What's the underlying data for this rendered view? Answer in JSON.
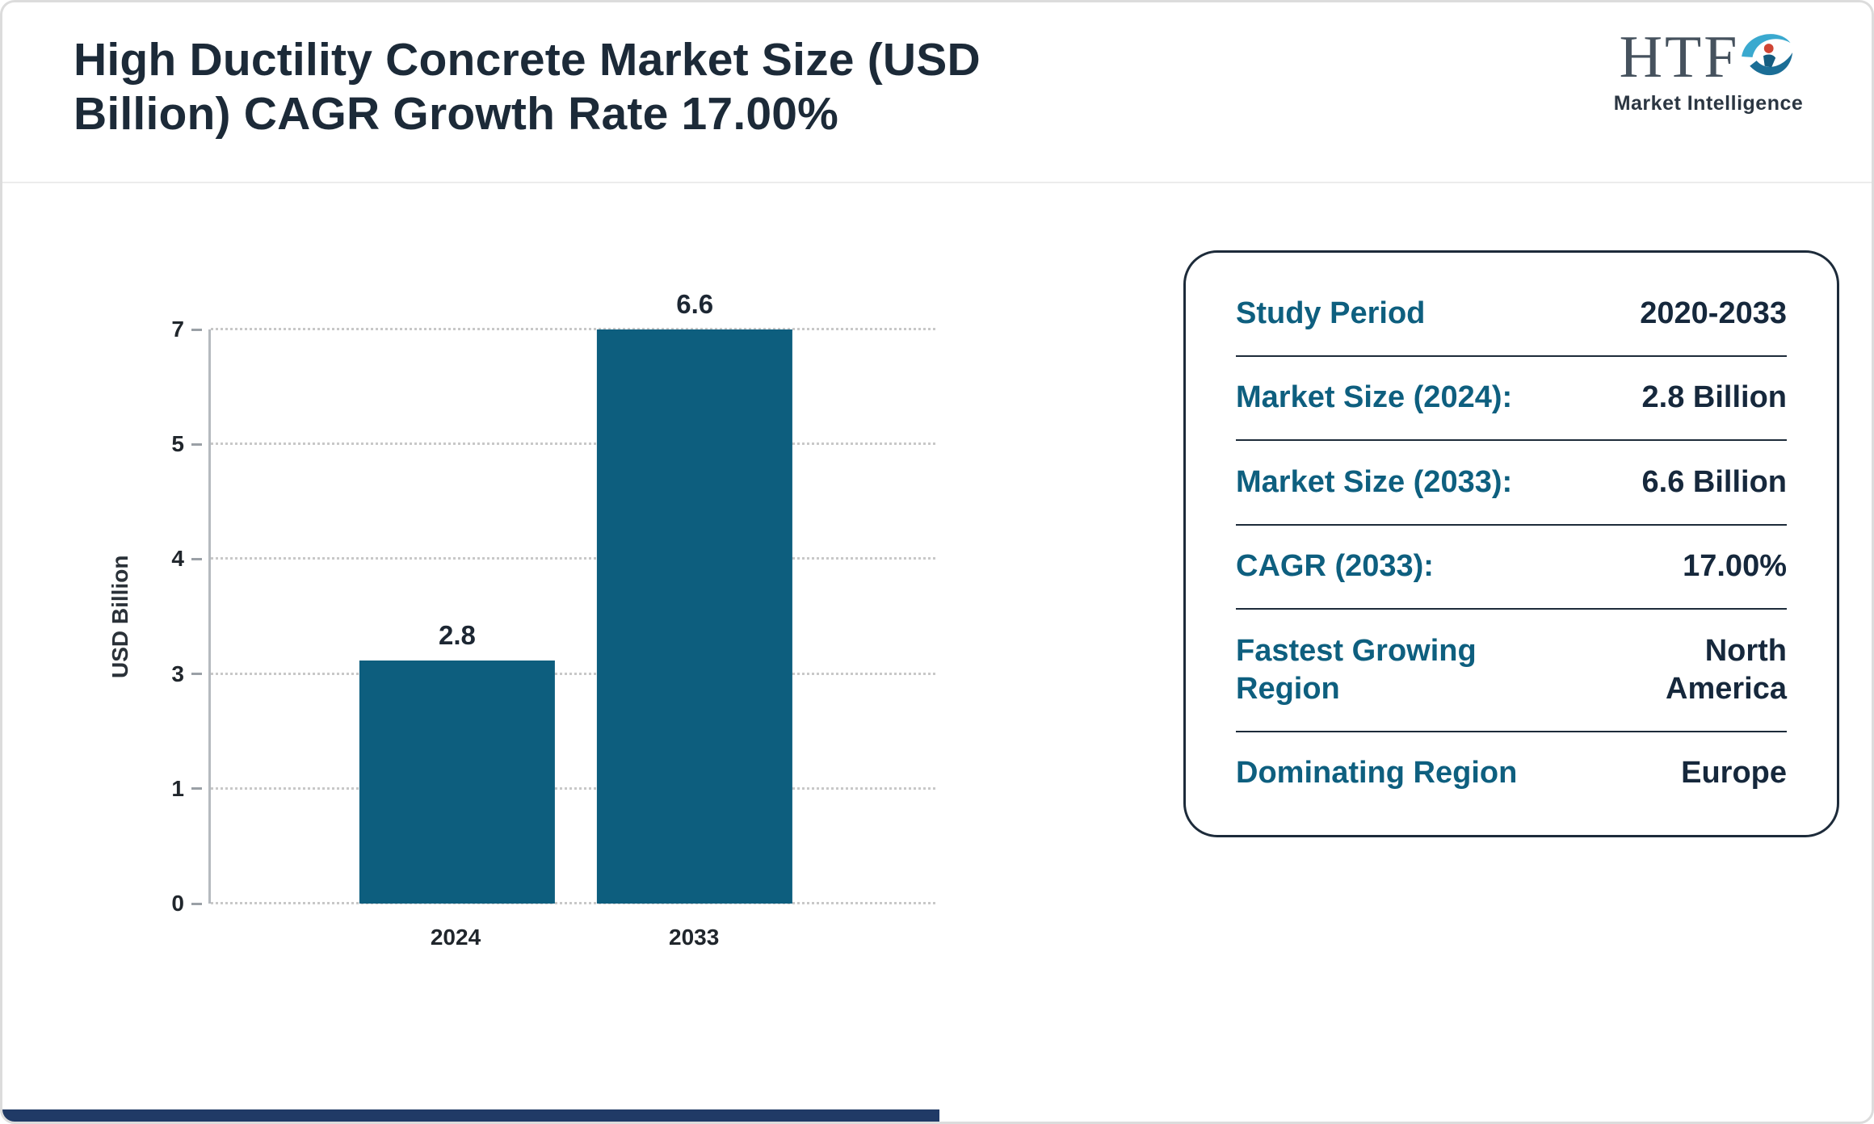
{
  "page": {
    "title_line1": "High Ductility Concrete Market Size (USD",
    "title_line2": "Billion) CAGR Growth Rate 17.00%"
  },
  "logo": {
    "text": "HTF",
    "subtext": "Market Intelligence"
  },
  "chart_data": {
    "type": "bar",
    "title": "High Ductility Concrete Market Size (USD Billion) CAGR Growth Rate 17.00%",
    "categories": [
      "2024",
      "2033"
    ],
    "values": [
      2.8,
      6.6
    ],
    "value_labels": [
      "2.8",
      "6.6"
    ],
    "xlabel": "",
    "ylabel": "USD Billion",
    "ytick_labels": [
      "0",
      "1",
      "3",
      "4",
      "5",
      "7"
    ],
    "ylim": [
      0,
      7
    ],
    "grid": "dotted-horizontal",
    "legend": "none",
    "bar_color": "#0d5e7e",
    "bar_centers": [
      0.34,
      0.668
    ],
    "bar_width_fraction": 0.27,
    "bar_render_fractions": [
      0.423,
      1.0
    ]
  },
  "info_card": {
    "label_color": "#0e5f7f",
    "value_color": "#16283c",
    "rows": [
      {
        "label": "Study Period",
        "value": "2020-2033"
      },
      {
        "label": "Market Size (2024):",
        "value": "2.8 Billion"
      },
      {
        "label": "Market Size (2033):",
        "value": "6.6 Billion"
      },
      {
        "label": "CAGR (2033):",
        "value": "17.00%"
      },
      {
        "label": "Fastest Growing\nRegion",
        "value": "North\nAmerica"
      },
      {
        "label": "Dominating Region",
        "value": "Europe"
      }
    ]
  }
}
